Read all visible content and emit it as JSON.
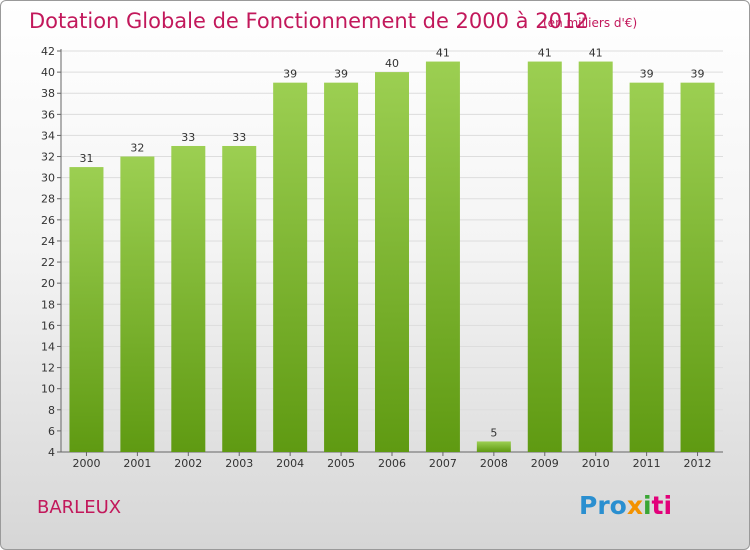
{
  "header": {
    "title": "Dotation Globale de Fonctionnement de 2000 à 2012",
    "units": "(en milliers d'€)"
  },
  "footer": {
    "city": "BARLEUX",
    "logo": "Proxiti",
    "logo_parts": [
      "Pro",
      "x",
      "i",
      "ti"
    ]
  },
  "colors": {
    "title": "#c2185b",
    "bar_top": "#9ccf52",
    "bar_bottom": "#5f9a12",
    "grid": "#dddddd"
  },
  "chart_data": {
    "type": "bar",
    "title": "Dotation Globale de Fonctionnement de 2000 à 2012",
    "subtitle": "(en milliers d'€)",
    "xlabel": "",
    "ylabel": "",
    "categories": [
      "2000",
      "2001",
      "2002",
      "2003",
      "2004",
      "2005",
      "2006",
      "2007",
      "2008",
      "2009",
      "2010",
      "2011",
      "2012"
    ],
    "values": [
      31,
      32,
      33,
      33,
      39,
      39,
      40,
      41,
      5,
      41,
      41,
      39,
      39
    ],
    "ylim": [
      4,
      42
    ],
    "yticks": [
      4,
      6,
      8,
      10,
      12,
      14,
      16,
      18,
      20,
      22,
      24,
      26,
      28,
      30,
      32,
      34,
      36,
      38,
      40,
      42
    ],
    "grid": true,
    "legend": "none"
  }
}
